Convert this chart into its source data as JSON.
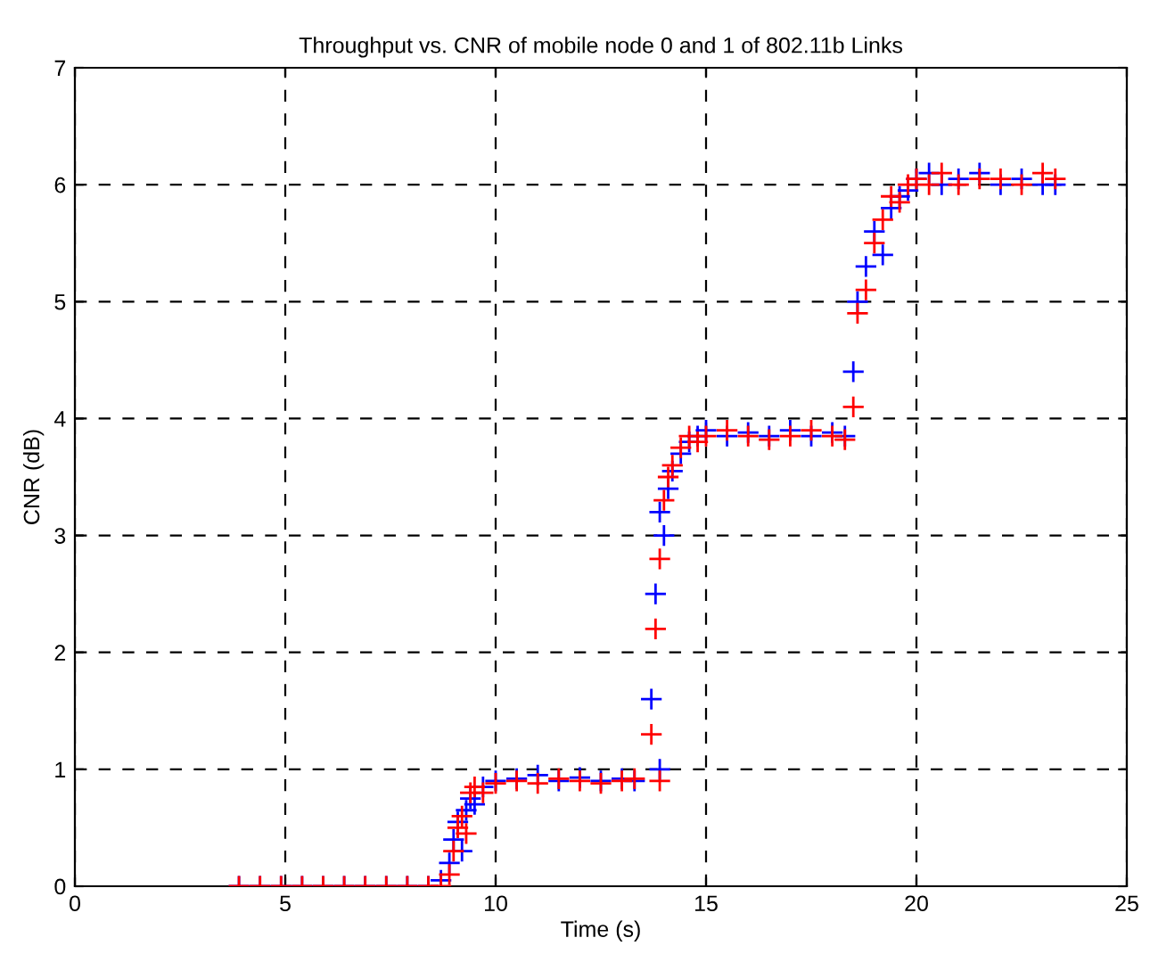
{
  "chart_data": {
    "type": "scatter",
    "title": "Throughput vs. CNR of mobile node 0 and 1 of 802.11b Links",
    "xlabel": "Time (s)",
    "ylabel": "CNR (dB)",
    "xlim": [
      0,
      25
    ],
    "ylim": [
      0,
      7
    ],
    "xticks": [
      0,
      5,
      10,
      15,
      20,
      25
    ],
    "yticks": [
      0,
      1,
      2,
      3,
      4,
      5,
      6,
      7
    ],
    "grid": true,
    "marker": "cross",
    "x": [
      3.9,
      4.4,
      4.9,
      5.4,
      5.9,
      6.4,
      6.9,
      7.4,
      7.9,
      8.4,
      8.7,
      8.9,
      9.0,
      9.1,
      9.2,
      9.3,
      9.4,
      9.5,
      9.7,
      10.0,
      10.5,
      11.0,
      11.5,
      12.0,
      12.5,
      13.0,
      13.3,
      13.7,
      13.8,
      13.9,
      13.9,
      14.0,
      14.1,
      14.2,
      14.4,
      14.6,
      14.8,
      15.0,
      15.5,
      16.0,
      16.5,
      17.0,
      17.5,
      18.0,
      18.3,
      18.5,
      18.6,
      18.8,
      19.0,
      19.2,
      19.4,
      19.6,
      19.8,
      20.0,
      20.3,
      20.6,
      21.0,
      21.5,
      22.0,
      22.5,
      23.0,
      23.3
    ],
    "series": [
      {
        "color": "#0000ff",
        "values": [
          0,
          0,
          0,
          0,
          0,
          0,
          0,
          0,
          0,
          0,
          0.05,
          0.2,
          0.4,
          0.55,
          0.3,
          0.65,
          0.75,
          0.7,
          0.85,
          0.9,
          0.92,
          0.95,
          0.9,
          0.93,
          0.9,
          0.92,
          0.9,
          1.6,
          2.5,
          1.0,
          3.2,
          3.0,
          3.4,
          3.55,
          3.7,
          3.8,
          3.85,
          3.9,
          3.85,
          3.88,
          3.85,
          3.9,
          3.85,
          3.88,
          3.85,
          4.4,
          5.0,
          5.3,
          5.6,
          5.4,
          5.8,
          5.9,
          5.95,
          6.05,
          6.1,
          6.0,
          6.05,
          6.1,
          6.0,
          6.05,
          6.0,
          6.0
        ]
      },
      {
        "color": "#ff0000",
        "values": [
          0,
          0,
          0,
          0,
          0,
          0,
          0,
          0,
          0,
          0,
          0.0,
          0.1,
          0.3,
          0.5,
          0.6,
          0.45,
          0.8,
          0.85,
          0.8,
          0.88,
          0.9,
          0.88,
          0.92,
          0.9,
          0.88,
          0.9,
          0.92,
          1.3,
          2.2,
          0.9,
          2.8,
          3.3,
          3.5,
          3.6,
          3.75,
          3.85,
          3.8,
          3.85,
          3.9,
          3.85,
          3.82,
          3.85,
          3.9,
          3.85,
          3.82,
          4.1,
          4.9,
          5.1,
          5.5,
          5.7,
          5.9,
          5.85,
          6.0,
          6.05,
          6.0,
          6.1,
          6.0,
          6.05,
          6.05,
          6.0,
          6.1,
          6.05
        ]
      }
    ]
  }
}
